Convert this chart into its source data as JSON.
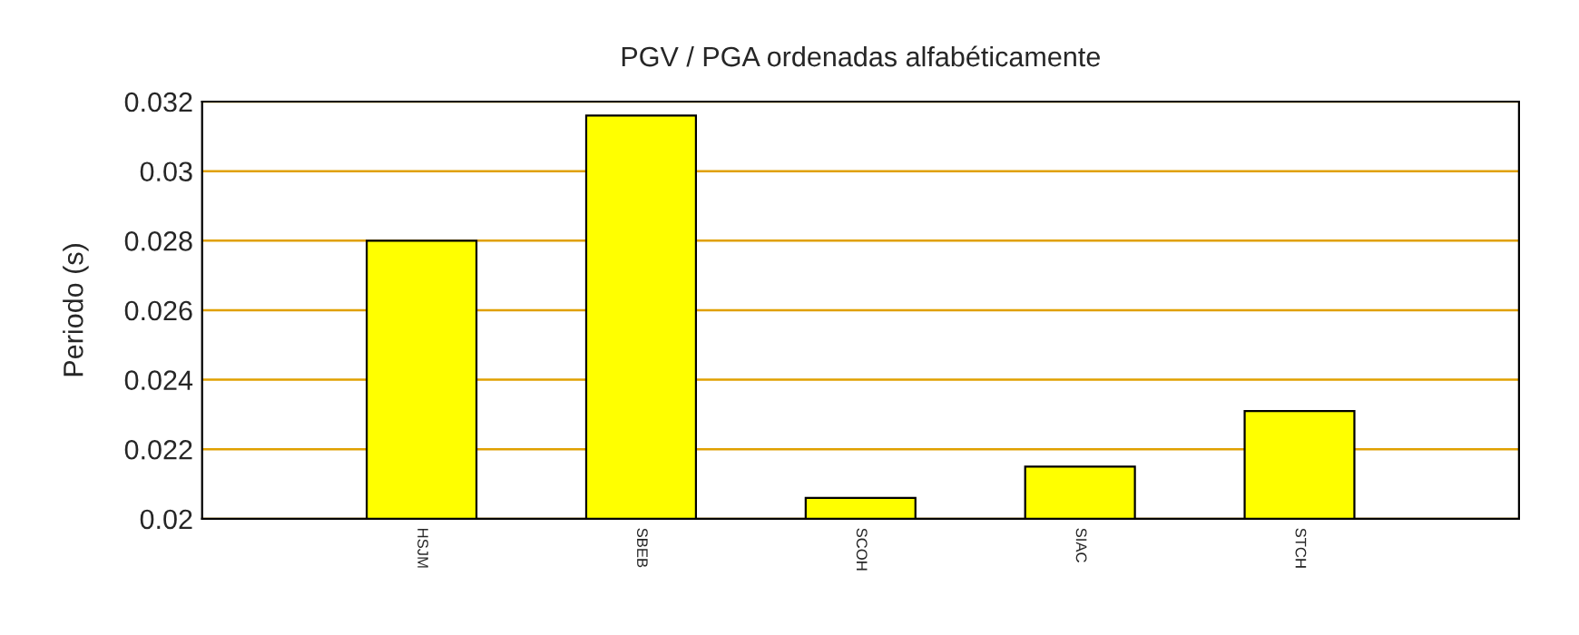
{
  "chart_data": {
    "type": "bar",
    "title": "PGV / PGA ordenadas alfabéticamente",
    "ylabel": "Periodo (s)",
    "categories": [
      "HSJM",
      "SBEB",
      "SCOH",
      "SIAC",
      "STCH"
    ],
    "values": [
      0.028,
      0.0316,
      0.0206,
      0.0215,
      0.0231
    ],
    "color": "#ffff00",
    "ylim": [
      0.02,
      0.032
    ],
    "yticks": [
      0.02,
      0.022,
      0.024,
      0.026,
      0.028,
      {
        "value": 0.03,
        "label": "0.03"
      },
      0.032
    ],
    "grid": "y"
  }
}
